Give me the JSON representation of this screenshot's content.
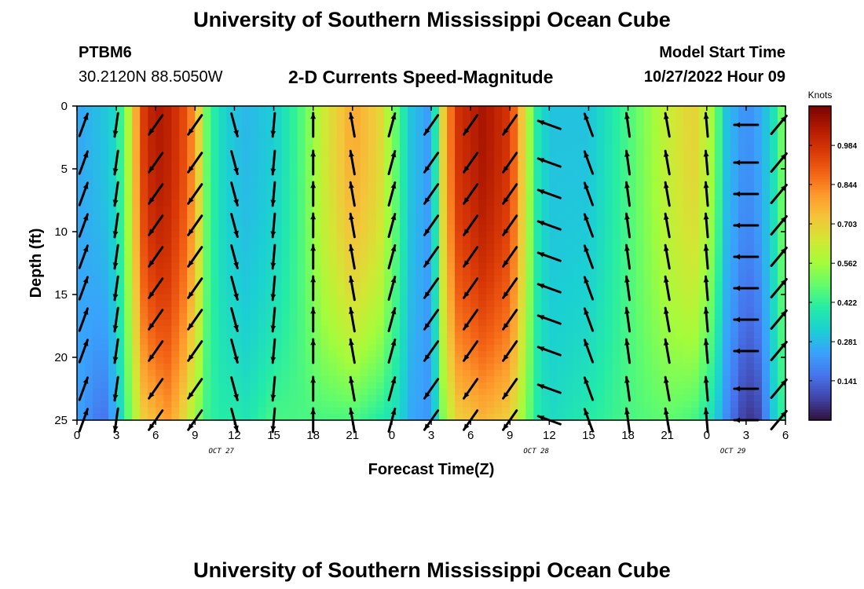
{
  "page": {
    "title": "University of Southern Mississippi Ocean Cube",
    "footer_title": "University of Southern Mississippi Ocean Cube"
  },
  "header": {
    "station": "PTBM6",
    "coordinates": "30.2120N  88.5050W",
    "subtitle": "2-D Currents Speed-Magnitude",
    "model_start_label": "Model Start Time",
    "model_start_value": "10/27/2022 Hour 09"
  },
  "chart_data": {
    "type": "heatmap",
    "title": "2-D Currents Speed-Magnitude",
    "xlabel": "Forecast Time(Z)",
    "ylabel": "Depth (ft)",
    "x_range_hours": [
      0,
      54
    ],
    "y_range_ft": [
      0,
      25
    ],
    "x_tick_labels": [
      "0",
      "3",
      "6",
      "9",
      "12",
      "15",
      "18",
      "21",
      "0",
      "3",
      "6",
      "9",
      "12",
      "15",
      "18",
      "21",
      "0",
      "3",
      "6"
    ],
    "y_tick_labels": [
      "0",
      "5",
      "10",
      "15",
      "20",
      "25"
    ],
    "date_labels": [
      {
        "label": "OCT 27",
        "hour": 11
      },
      {
        "label": "OCT 28",
        "hour": 35
      },
      {
        "label": "OCT 29",
        "hour": 50
      }
    ],
    "colorbar": {
      "unit": "Knots",
      "min": 0,
      "max": 1.125,
      "tick_values": [
        0.984,
        0.844,
        0.703,
        0.562,
        0.422,
        0.281,
        0.141
      ],
      "tick_labels": [
        "0.984",
        "0.844",
        "0.703",
        "0.562",
        "0.422",
        "0.281",
        "0.141"
      ],
      "colors": [
        "#30123b",
        "#4145ab",
        "#4675ed",
        "#39a2fc",
        "#1bcfd4",
        "#24eca6",
        "#61fc6c",
        "#a4fc3b",
        "#d1e834",
        "#f3c63a",
        "#fe9b2d",
        "#f36315",
        "#d93806",
        "#b11901",
        "#7a0403"
      ]
    },
    "speed_profiles": [
      {
        "hour": 0,
        "top": 0.25,
        "bottom": 0.25
      },
      {
        "hour": 2,
        "top": 0.3,
        "bottom": 0.15
      },
      {
        "hour": 3,
        "top": 0.35,
        "bottom": 0.28
      },
      {
        "hour": 4,
        "top": 0.6,
        "bottom": 0.5
      },
      {
        "hour": 5,
        "top": 0.95,
        "bottom": 0.7
      },
      {
        "hour": 6,
        "top": 1.05,
        "bottom": 0.75
      },
      {
        "hour": 7,
        "top": 1.02,
        "bottom": 0.8
      },
      {
        "hour": 8,
        "top": 0.95,
        "bottom": 0.7
      },
      {
        "hour": 9,
        "top": 0.8,
        "bottom": 0.55
      },
      {
        "hour": 10,
        "top": 0.45,
        "bottom": 0.42
      },
      {
        "hour": 11,
        "top": 0.35,
        "bottom": 0.4
      },
      {
        "hour": 12,
        "top": 0.3,
        "bottom": 0.4
      },
      {
        "hour": 13,
        "top": 0.28,
        "bottom": 0.38
      },
      {
        "hour": 15,
        "top": 0.32,
        "bottom": 0.45
      },
      {
        "hour": 17,
        "top": 0.45,
        "bottom": 0.45
      },
      {
        "hour": 19,
        "top": 0.65,
        "bottom": 0.45
      },
      {
        "hour": 21,
        "top": 0.78,
        "bottom": 0.45
      },
      {
        "hour": 23,
        "top": 0.7,
        "bottom": 0.4
      },
      {
        "hour": 24.5,
        "top": 0.45,
        "bottom": 0.35
      },
      {
        "hour": 25.5,
        "top": 0.3,
        "bottom": 0.25
      },
      {
        "hour": 27,
        "top": 0.22,
        "bottom": 0.22
      },
      {
        "hour": 28,
        "top": 0.75,
        "bottom": 0.55
      },
      {
        "hour": 29,
        "top": 0.98,
        "bottom": 0.7
      },
      {
        "hour": 31,
        "top": 1.06,
        "bottom": 0.75
      },
      {
        "hour": 33,
        "top": 0.97,
        "bottom": 0.7
      },
      {
        "hour": 34,
        "top": 0.7,
        "bottom": 0.55
      },
      {
        "hour": 35,
        "top": 0.4,
        "bottom": 0.4
      },
      {
        "hour": 36,
        "top": 0.3,
        "bottom": 0.35
      },
      {
        "hour": 39,
        "top": 0.3,
        "bottom": 0.4
      },
      {
        "hour": 42,
        "top": 0.45,
        "bottom": 0.45
      },
      {
        "hour": 45,
        "top": 0.62,
        "bottom": 0.48
      },
      {
        "hour": 47,
        "top": 0.7,
        "bottom": 0.45
      },
      {
        "hour": 48.5,
        "top": 0.55,
        "bottom": 0.35
      },
      {
        "hour": 49.5,
        "top": 0.3,
        "bottom": 0.2
      },
      {
        "hour": 51,
        "top": 0.2,
        "bottom": 0.05
      },
      {
        "hour": 52,
        "top": 0.25,
        "bottom": 0.08
      },
      {
        "hour": 53,
        "top": 0.35,
        "bottom": 0.3
      },
      {
        "hour": 54,
        "top": 0.55,
        "bottom": 0.45
      }
    ],
    "vectors": [
      {
        "hour": 0.5,
        "angle_deg": 70
      },
      {
        "hour": 3,
        "angle_deg": -98
      },
      {
        "hour": 6,
        "angle_deg": 235
      },
      {
        "hour": 9,
        "angle_deg": 235
      },
      {
        "hour": 12,
        "angle_deg": -75
      },
      {
        "hour": 15,
        "angle_deg": -95
      },
      {
        "hour": 18,
        "angle_deg": 90
      },
      {
        "hour": 21,
        "angle_deg": 100
      },
      {
        "hour": 24,
        "angle_deg": 75
      },
      {
        "hour": 27,
        "angle_deg": 235
      },
      {
        "hour": 30,
        "angle_deg": 235
      },
      {
        "hour": 33,
        "angle_deg": 235
      },
      {
        "hour": 36,
        "angle_deg": 160
      },
      {
        "hour": 39,
        "angle_deg": 110
      },
      {
        "hour": 42,
        "angle_deg": 98
      },
      {
        "hour": 45,
        "angle_deg": 100
      },
      {
        "hour": 48,
        "angle_deg": 95
      },
      {
        "hour": 51,
        "angle_deg": 180
      },
      {
        "hour": 53.5,
        "angle_deg": 50
      }
    ],
    "vector_depths_ft": [
      1.5,
      4.5,
      7,
      9.5,
      12,
      14.5,
      17,
      19.5,
      22.5,
      25
    ]
  }
}
